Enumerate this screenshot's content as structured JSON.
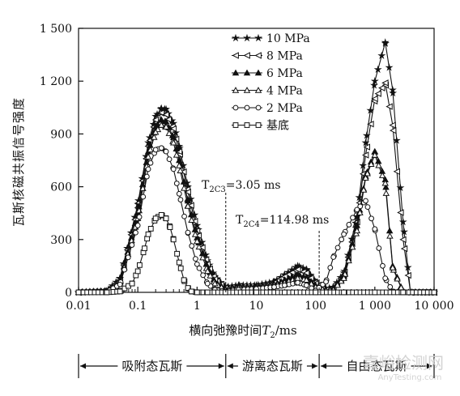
{
  "chart_data": {
    "type": "line",
    "ylabel": "瓦斯核磁共振信号强度",
    "xlabel_prefix": "横向弛豫时间",
    "xlabel_symbol": "T",
    "xlabel_sub": "2",
    "xlabel_unit": "/ms",
    "x_scale": "log",
    "xlim": [
      0.01,
      10000
    ],
    "ylim": [
      0,
      1500
    ],
    "x_ticks": [
      "0.01",
      "0.1",
      "1",
      "10",
      "100",
      "1 000",
      "10 000"
    ],
    "y_ticks": [
      "0",
      "300",
      "600",
      "900",
      "1 200",
      "1 500"
    ],
    "grid": false,
    "legend_position": "top-right",
    "series": [
      {
        "name": "10 MPa",
        "color": "#111111",
        "marker": "star",
        "x": [
          0.01,
          0.03,
          0.05,
          0.1,
          0.15,
          0.2,
          0.25,
          0.3,
          0.4,
          0.5,
          0.7,
          1.0,
          1.5,
          2.0,
          3.0,
          5.0,
          10,
          20,
          30,
          50,
          70,
          100,
          150,
          200,
          300,
          500,
          700,
          1000,
          1500,
          2000,
          3000,
          4000,
          10000
        ],
        "y": [
          0,
          8,
          80,
          500,
          850,
          1000,
          1045,
          1040,
          960,
          830,
          600,
          380,
          180,
          90,
          30,
          40,
          40,
          60,
          100,
          150,
          130,
          60,
          20,
          30,
          110,
          430,
          850,
          1200,
          1420,
          1150,
          400,
          0,
          0
        ]
      },
      {
        "name": "8 MPa",
        "color": "#111111",
        "marker": "triangle-left",
        "x": [
          0.01,
          0.03,
          0.05,
          0.1,
          0.15,
          0.2,
          0.25,
          0.3,
          0.4,
          0.5,
          0.7,
          1.0,
          1.5,
          2.0,
          3.0,
          5.0,
          10,
          20,
          30,
          50,
          70,
          100,
          150,
          200,
          300,
          500,
          700,
          1000,
          1500,
          2000,
          3000,
          4000,
          10000
        ],
        "y": [
          0,
          6,
          70,
          480,
          830,
          980,
          1020,
          1010,
          930,
          800,
          570,
          350,
          160,
          75,
          25,
          35,
          35,
          55,
          90,
          130,
          110,
          50,
          15,
          25,
          100,
          400,
          780,
          1100,
          1190,
          950,
          300,
          0,
          0
        ]
      },
      {
        "name": "6 MPa",
        "color": "#111111",
        "marker": "triangle-up",
        "x": [
          0.01,
          0.03,
          0.05,
          0.1,
          0.15,
          0.2,
          0.25,
          0.3,
          0.4,
          0.5,
          0.7,
          1.0,
          1.5,
          2.0,
          3.0,
          5.0,
          10,
          20,
          30,
          50,
          70,
          100,
          150,
          200,
          300,
          500,
          700,
          1000,
          1500,
          2000,
          3000,
          10000
        ],
        "y": [
          0,
          5,
          60,
          450,
          800,
          940,
          980,
          970,
          880,
          750,
          520,
          310,
          140,
          60,
          20,
          30,
          30,
          45,
          70,
          100,
          85,
          40,
          12,
          20,
          90,
          380,
          660,
          800,
          640,
          150,
          0,
          0
        ]
      },
      {
        "name": "4 MPa",
        "color": "#111111",
        "marker": "triangle-up-open",
        "x": [
          0.01,
          0.03,
          0.05,
          0.1,
          0.15,
          0.2,
          0.25,
          0.3,
          0.4,
          0.5,
          0.7,
          1.0,
          1.5,
          2.0,
          3.0,
          5.0,
          10,
          20,
          30,
          50,
          70,
          100,
          150,
          200,
          300,
          500,
          700,
          1000,
          1500,
          2000,
          3000,
          10000
        ],
        "y": [
          0,
          4,
          55,
          420,
          770,
          910,
          950,
          940,
          850,
          720,
          490,
          290,
          120,
          50,
          15,
          25,
          25,
          40,
          55,
          80,
          70,
          30,
          10,
          15,
          80,
          350,
          650,
          780,
          620,
          140,
          0,
          0
        ]
      },
      {
        "name": "2 MPa",
        "color": "#111111",
        "marker": "circle-open",
        "x": [
          0.01,
          0.03,
          0.05,
          0.1,
          0.15,
          0.2,
          0.25,
          0.3,
          0.4,
          0.5,
          0.7,
          1.0,
          1.5,
          2.0,
          3.0,
          5.0,
          10,
          20,
          30,
          50,
          70,
          100,
          150,
          200,
          300,
          500,
          700,
          1000,
          1500,
          2000,
          3000,
          10000
        ],
        "y": [
          0,
          3,
          45,
          380,
          700,
          810,
          820,
          800,
          700,
          560,
          340,
          160,
          50,
          15,
          5,
          15,
          20,
          30,
          40,
          55,
          40,
          10,
          60,
          200,
          330,
          470,
          520,
          360,
          80,
          5,
          0,
          0
        ]
      },
      {
        "name": "基底",
        "color": "#111111",
        "marker": "square-open",
        "x": [
          0.01,
          0.03,
          0.05,
          0.08,
          0.1,
          0.13,
          0.15,
          0.2,
          0.25,
          0.3,
          0.35,
          0.4,
          0.5,
          0.6,
          0.7,
          0.8,
          1.0,
          1.5,
          3.0,
          10,
          30,
          100,
          300,
          1000,
          3000,
          10000
        ],
        "y": [
          0,
          0,
          5,
          50,
          120,
          250,
          330,
          420,
          440,
          420,
          370,
          300,
          170,
          70,
          25,
          5,
          0,
          0,
          0,
          0,
          0,
          0,
          0,
          0,
          0,
          0
        ]
      }
    ],
    "annotations": [
      {
        "symbol": "T",
        "sub": "2C3",
        "value": "=3.05 ms",
        "x": 3.05
      },
      {
        "symbol": "T",
        "sub": "2C4",
        "value": "=114.98 ms",
        "x": 114.98
      }
    ],
    "regions": [
      {
        "label": "吸附态瓦斯",
        "from": 0.01,
        "to": 3.05
      },
      {
        "label": "游离态瓦斯",
        "from": 3.05,
        "to": 114.98
      },
      {
        "label": "自由态瓦斯",
        "from": 114.98,
        "to": 10000
      }
    ]
  },
  "watermark": {
    "text": "嘉峪检测网",
    "sub": "AnyTesting.com"
  }
}
